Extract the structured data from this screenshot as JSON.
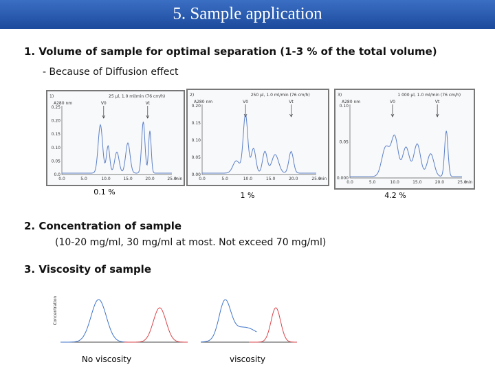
{
  "header": {
    "title": "5. Sample application"
  },
  "section1": {
    "heading": "1. Volume of sample for optimal separation (1-3 % of the total volume)",
    "note": "- Because of  Diffusion effect",
    "panels": [
      {
        "label": "1)",
        "flow": "25 µl, 1.0 ml/min (76 cm/h)",
        "y_axis": "A280 nm",
        "yticks": [
          "0.25",
          "0.20",
          "0.15",
          "0.10",
          "0.05",
          "0.0"
        ],
        "xticks": [
          "0.0",
          "5.0",
          "10.0",
          "15.0",
          "20.0",
          "25.0"
        ],
        "x_unit": "min",
        "markers": [
          "V0",
          "Vt"
        ],
        "caption": "0.1 %"
      },
      {
        "label": "2)",
        "flow": "250 µl, 1.0 ml/min (76 cm/h)",
        "y_axis": "A280 nm",
        "yticks": [
          "0.20",
          "0.15",
          "0.10",
          "0.05",
          "0.00"
        ],
        "xticks": [
          "0.0",
          "5.0",
          "10.0",
          "15.0",
          "20.0",
          "25.0"
        ],
        "x_unit": "min",
        "markers": [
          "V0",
          "Vt"
        ],
        "caption": "1 %"
      },
      {
        "label": "3)",
        "flow": "1 000 µl, 1.0 ml/min (76 cm/h)",
        "y_axis": "A280 nm",
        "yticks": [
          "0.10",
          "0.05",
          "0.000"
        ],
        "xticks": [
          "0.0",
          "5.0",
          "10.0",
          "15.0",
          "20.0",
          "25.0"
        ],
        "x_unit": "min",
        "markers": [
          "V0",
          "Vt"
        ],
        "caption": "4.2 %"
      }
    ]
  },
  "section2": {
    "heading": "2. Concentration of sample",
    "note": "(10-20 mg/ml, 30 mg/ml at most. Not exceed 70 mg/ml)"
  },
  "section3": {
    "heading": "3.  Viscosity of sample",
    "y_axis": "Concentration",
    "graphs": [
      {
        "caption": "No viscosity"
      },
      {
        "caption": "viscosity"
      }
    ]
  }
}
